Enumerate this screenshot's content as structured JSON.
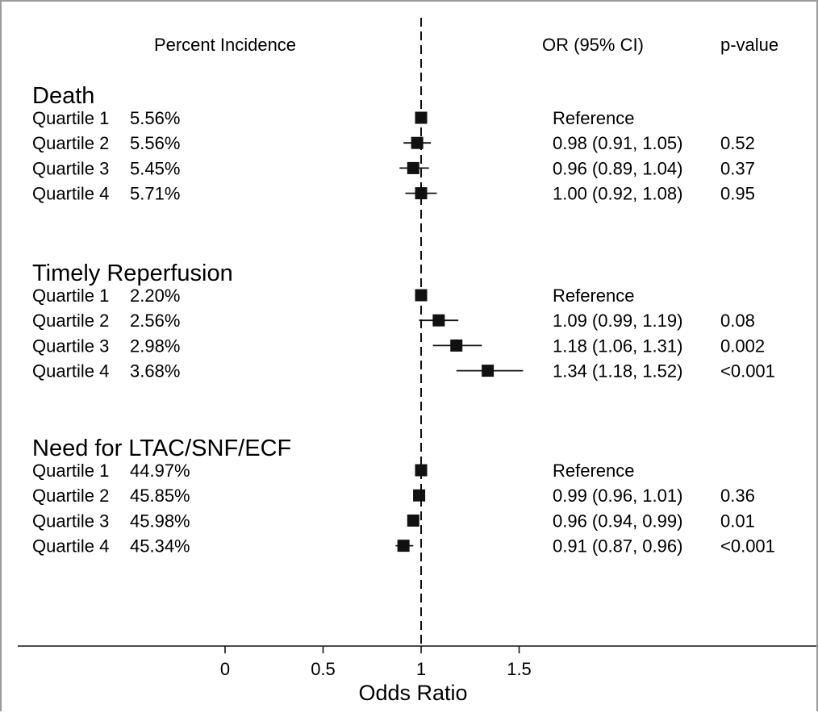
{
  "headers": {
    "incidence": "Percent Incidence",
    "or_ci": "OR (95% CI)",
    "pvalue": "p-value"
  },
  "chart_data": {
    "type": "forest",
    "xlabel": "Odds Ratio",
    "xticks": [
      0,
      0.5,
      1,
      1.5
    ],
    "xlim": [
      -1.05,
      2.0
    ],
    "reference_line": 1,
    "groups": [
      {
        "name": "Death",
        "rows": [
          {
            "label": "Quartile 1",
            "incidence": "5.56%",
            "or": 1.0,
            "lo": 1.0,
            "hi": 1.0,
            "or_text": "Reference",
            "p": ""
          },
          {
            "label": "Quartile 2",
            "incidence": "5.56%",
            "or": 0.98,
            "lo": 0.91,
            "hi": 1.05,
            "or_text": "0.98 (0.91, 1.05)",
            "p": "0.52"
          },
          {
            "label": "Quartile 3",
            "incidence": "5.45%",
            "or": 0.96,
            "lo": 0.89,
            "hi": 1.04,
            "or_text": "0.96 (0.89, 1.04)",
            "p": "0.37"
          },
          {
            "label": "Quartile 4",
            "incidence": "5.71%",
            "or": 1.0,
            "lo": 0.92,
            "hi": 1.08,
            "or_text": "1.00 (0.92, 1.08)",
            "p": "0.95"
          }
        ]
      },
      {
        "name": "Timely Reperfusion",
        "rows": [
          {
            "label": "Quartile 1",
            "incidence": "2.20%",
            "or": 1.0,
            "lo": 1.0,
            "hi": 1.0,
            "or_text": "Reference",
            "p": ""
          },
          {
            "label": "Quartile 2",
            "incidence": "2.56%",
            "or": 1.09,
            "lo": 0.99,
            "hi": 1.19,
            "or_text": "1.09 (0.99, 1.19)",
            "p": "0.08"
          },
          {
            "label": "Quartile 3",
            "incidence": "2.98%",
            "or": 1.18,
            "lo": 1.06,
            "hi": 1.31,
            "or_text": "1.18 (1.06, 1.31)",
            "p": "0.002"
          },
          {
            "label": "Quartile 4",
            "incidence": "3.68%",
            "or": 1.34,
            "lo": 1.18,
            "hi": 1.52,
            "or_text": "1.34 (1.18, 1.52)",
            "p": "<0.001"
          }
        ]
      },
      {
        "name": "Need for LTAC/SNF/ECF",
        "rows": [
          {
            "label": "Quartile 1",
            "incidence": "44.97%",
            "or": 1.0,
            "lo": 1.0,
            "hi": 1.0,
            "or_text": "Reference",
            "p": ""
          },
          {
            "label": "Quartile 2",
            "incidence": "45.85%",
            "or": 0.99,
            "lo": 0.96,
            "hi": 1.01,
            "or_text": "0.99 (0.96, 1.01)",
            "p": "0.36"
          },
          {
            "label": "Quartile 3",
            "incidence": "45.98%",
            "or": 0.96,
            "lo": 0.94,
            "hi": 0.99,
            "or_text": "0.96 (0.94, 0.99)",
            "p": "0.01"
          },
          {
            "label": "Quartile 4",
            "incidence": "45.34%",
            "or": 0.91,
            "lo": 0.87,
            "hi": 0.96,
            "or_text": "0.91 (0.87, 0.96)",
            "p": "<0.001"
          }
        ]
      }
    ]
  }
}
